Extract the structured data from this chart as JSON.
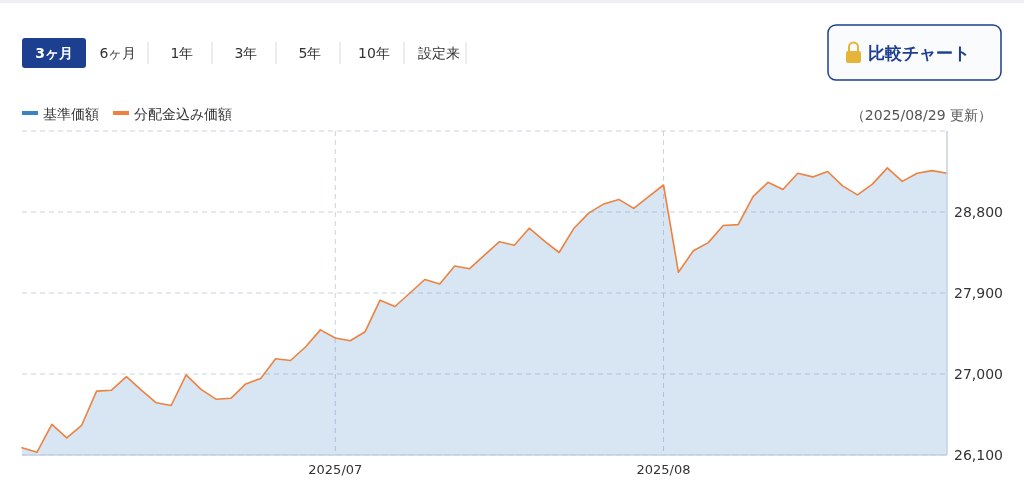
{
  "chart_data": {
    "type": "line",
    "categories": [
      null,
      null,
      null,
      null,
      null,
      null,
      null,
      null,
      null,
      null,
      null,
      null,
      null,
      null,
      null,
      null,
      null,
      null,
      null,
      null,
      null,
      "2025/07",
      null,
      null,
      null,
      null,
      null,
      null,
      null,
      null,
      null,
      null,
      null,
      null,
      null,
      null,
      null,
      null,
      null,
      null,
      null,
      null,
      null,
      "2025/08",
      null,
      null,
      null,
      null,
      null,
      null,
      null,
      null,
      null,
      null,
      null,
      null,
      null,
      null,
      null,
      null,
      null,
      null,
      null
    ],
    "series": [
      {
        "name": "基準価額",
        "type": "area",
        "color": "#3b82c4",
        "values": [
          26180,
          26130,
          26440,
          26290,
          26430,
          26810,
          26820,
          26970,
          26820,
          26680,
          26650,
          26990,
          26830,
          26720,
          26730,
          26890,
          26950,
          27170,
          27150,
          27300,
          27490,
          27400,
          27370,
          27470,
          27820,
          27750,
          27900,
          28050,
          28000,
          28200,
          28170,
          28320,
          28470,
          28430,
          28620,
          28480,
          28350,
          28620,
          28790,
          28890,
          28940,
          28840,
          28970,
          29100,
          28130,
          28370,
          28460,
          28650,
          28660,
          28970,
          29130,
          29050,
          29230,
          29190,
          29250,
          29090,
          28990,
          29110,
          29290,
          29140,
          29230,
          29260,
          29230
        ]
      },
      {
        "name": "分配金込み価額",
        "type": "line",
        "color": "#ed8240",
        "values": [
          26180,
          26130,
          26440,
          26290,
          26430,
          26810,
          26820,
          26970,
          26820,
          26680,
          26650,
          26990,
          26830,
          26720,
          26730,
          26890,
          26950,
          27170,
          27150,
          27300,
          27490,
          27400,
          27370,
          27470,
          27820,
          27750,
          27900,
          28050,
          28000,
          28200,
          28170,
          28320,
          28470,
          28430,
          28620,
          28480,
          28350,
          28620,
          28790,
          28890,
          28940,
          28840,
          28970,
          29100,
          28130,
          28370,
          28460,
          28650,
          28660,
          28970,
          29130,
          29050,
          29230,
          29190,
          29250,
          29090,
          28990,
          29110,
          29290,
          29140,
          29230,
          29260,
          29230
        ]
      }
    ],
    "ylim": [
      26100,
      29700
    ],
    "yticks": [
      {
        "value": 26100,
        "label": "26,100"
      },
      {
        "value": 27000,
        "label": "27,000"
      },
      {
        "value": 27900,
        "label": "27,900"
      },
      {
        "value": 28800,
        "label": "28,800"
      },
      {
        "value": 29700,
        "label": null
      }
    ],
    "grid": true,
    "legend": "top left",
    "annotations": [
      "3ヶ月",
      "6ヶ月",
      "1年",
      "3年",
      "5年",
      "10年",
      "設定来",
      "比較チャート",
      "（2025/08/29 更新）"
    ]
  }
}
